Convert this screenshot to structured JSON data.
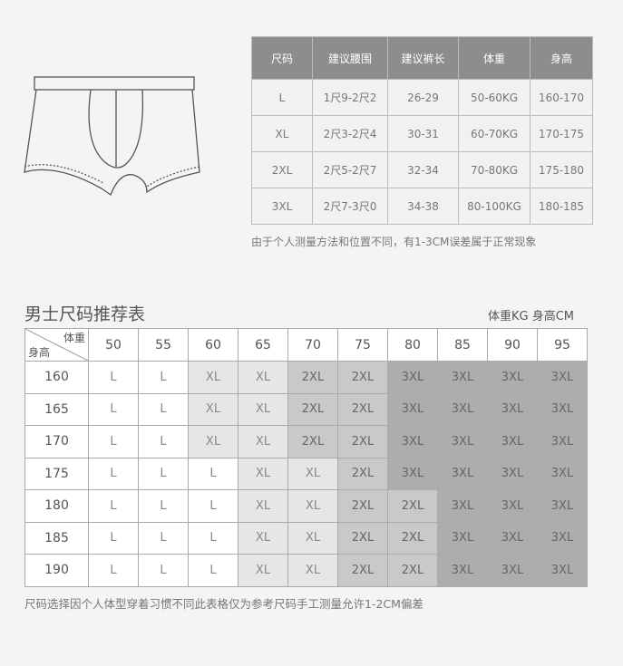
{
  "spec_table": {
    "headers": [
      "尺码",
      "建议腰围",
      "建议裤长",
      "体重",
      "身高"
    ],
    "rows": [
      [
        "L",
        "1尺9-2尺2",
        "26-29",
        "50-60KG",
        "160-170"
      ],
      [
        "XL",
        "2尺3-2尺4",
        "30-31",
        "60-70KG",
        "170-175"
      ],
      [
        "2XL",
        "2尺5-2尺7",
        "32-34",
        "70-80KG",
        "175-180"
      ],
      [
        "3XL",
        "2尺7-3尺0",
        "34-38",
        "80-100KG",
        "180-185"
      ]
    ],
    "note": "由于个人测量方法和位置不同，有1-3CM误差属于正常现象"
  },
  "recommend": {
    "title": "男士尺码推荐表",
    "units": "体重KG 身高CM",
    "corner_weight": "体重",
    "corner_height": "身高",
    "weights": [
      "50",
      "55",
      "60",
      "65",
      "70",
      "75",
      "80",
      "85",
      "90",
      "95"
    ],
    "rows": [
      {
        "height": "160",
        "sizes": [
          "L",
          "L",
          "XL",
          "XL",
          "2XL",
          "2XL",
          "3XL",
          "3XL",
          "3XL",
          "3XL"
        ]
      },
      {
        "height": "165",
        "sizes": [
          "L",
          "L",
          "XL",
          "XL",
          "2XL",
          "2XL",
          "3XL",
          "3XL",
          "3XL",
          "3XL"
        ]
      },
      {
        "height": "170",
        "sizes": [
          "L",
          "L",
          "XL",
          "XL",
          "2XL",
          "2XL",
          "3XL",
          "3XL",
          "3XL",
          "3XL"
        ]
      },
      {
        "height": "175",
        "sizes": [
          "L",
          "L",
          "L",
          "XL",
          "XL",
          "2XL",
          "3XL",
          "3XL",
          "3XL",
          "3XL"
        ]
      },
      {
        "height": "180",
        "sizes": [
          "L",
          "L",
          "L",
          "XL",
          "XL",
          "2XL",
          "2XL",
          "3XL",
          "3XL",
          "3XL"
        ]
      },
      {
        "height": "185",
        "sizes": [
          "L",
          "L",
          "L",
          "XL",
          "XL",
          "2XL",
          "2XL",
          "3XL",
          "3XL",
          "3XL"
        ]
      },
      {
        "height": "190",
        "sizes": [
          "L",
          "L",
          "L",
          "XL",
          "XL",
          "2XL",
          "2XL",
          "3XL",
          "3XL",
          "3XL"
        ]
      }
    ],
    "size_colors": {
      "L": "#ffffff",
      "XL": "#e6e6e6",
      "2XL": "#c9c9c9",
      "3XL": "#adadad"
    },
    "note": "尺码选择因个人体型穿着习惯不同此表格仅为参考尺码手工测量允许1-2CM偏差"
  }
}
